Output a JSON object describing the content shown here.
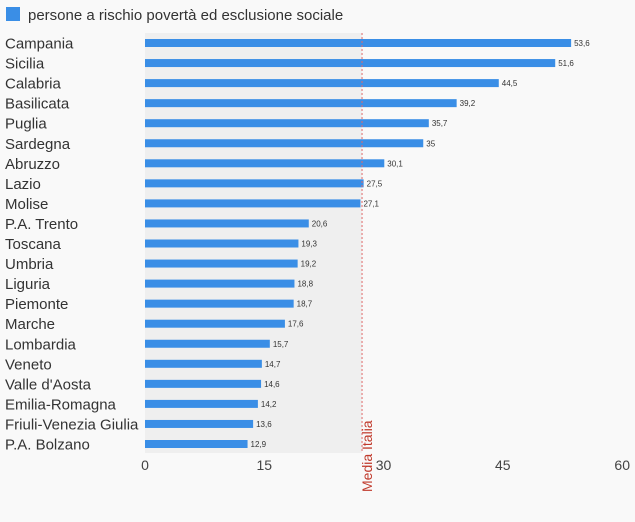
{
  "chart_data": {
    "type": "bar",
    "orientation": "horizontal",
    "legend": {
      "position": "top-left"
    },
    "series": [
      {
        "name": "persone a rischio povertà ed esclusione sociale",
        "color": "#3a8ee6"
      }
    ],
    "categories": [
      "Campania",
      "Sicilia",
      "Calabria",
      "Basilicata",
      "Puglia",
      "Sardegna",
      "Abruzzo",
      "Lazio",
      "Molise",
      "P.A. Trento",
      "Toscana",
      "Umbria",
      "Liguria",
      "Piemonte",
      "Marche",
      "Lombardia",
      "Veneto",
      "Valle d'Aosta",
      "Emilia-Romagna",
      "Friuli-Venezia Giulia",
      "P.A. Bolzano"
    ],
    "values": [
      53.6,
      51.6,
      44.5,
      39.2,
      35.7,
      35,
      30.1,
      27.5,
      27.1,
      20.6,
      19.3,
      19.2,
      18.8,
      18.7,
      17.6,
      15.7,
      14.7,
      14.6,
      14.2,
      13.6,
      12.9
    ],
    "value_labels": [
      "53,6",
      "51,6",
      "44,5",
      "39,2",
      "35,7",
      "35",
      "30,1",
      "27,5",
      "27,1",
      "20,6",
      "19,3",
      "19,2",
      "18,8",
      "18,7",
      "17,6",
      "15,7",
      "14,7",
      "14,6",
      "14,2",
      "13,6",
      "12,9"
    ],
    "x_ticks": [
      0,
      15,
      30,
      45,
      60
    ],
    "xlim": [
      0,
      60
    ],
    "grid": false,
    "reference_line": {
      "label": "Media Italia",
      "value": 27.3,
      "color": "#e06a6a",
      "shaded_below": true
    }
  }
}
